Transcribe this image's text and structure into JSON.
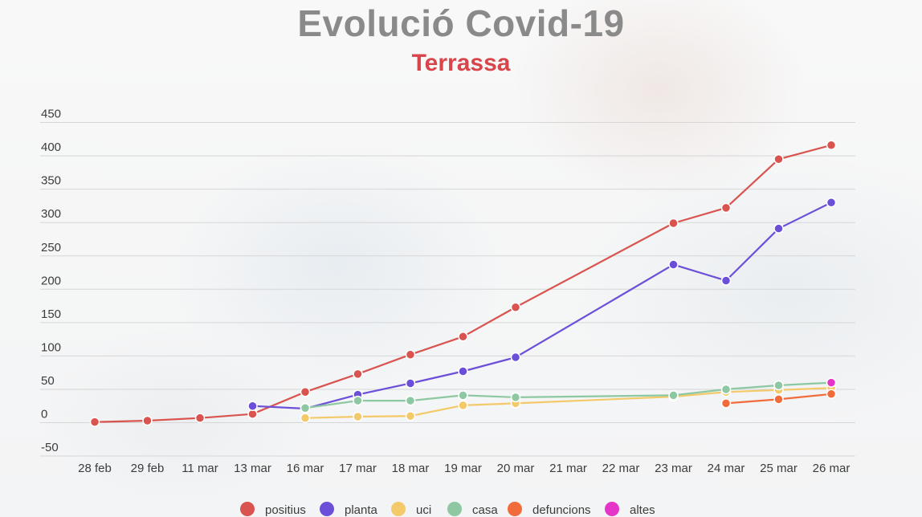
{
  "header": {
    "title": "Evolució Covid-19",
    "subtitle": "Terrassa"
  },
  "chart_data": {
    "type": "line",
    "title": "Evolució Covid-19",
    "subtitle": "Terrassa",
    "xlabel": "",
    "ylabel": "",
    "categories": [
      "28 feb",
      "29 feb",
      "11 mar",
      "13 mar",
      "16 mar",
      "17 mar",
      "18 mar",
      "19 mar",
      "20 mar",
      "21 mar",
      "22 mar",
      "23 mar",
      "24 mar",
      "25 mar",
      "26 mar"
    ],
    "y_ticks": [
      -50,
      0,
      50,
      100,
      150,
      200,
      250,
      300,
      350,
      400,
      450
    ],
    "ylim": [
      -60,
      460
    ],
    "grid": true,
    "legend_position": "bottom",
    "series": [
      {
        "name": "positius",
        "color": "#d9534f",
        "values": [
          1,
          3,
          7,
          13,
          46,
          73,
          102,
          129,
          173,
          null,
          null,
          299,
          322,
          395,
          416
        ]
      },
      {
        "name": "planta",
        "color": "#6c4fd9",
        "values": [
          null,
          null,
          null,
          25,
          21,
          42,
          59,
          77,
          98,
          null,
          null,
          237,
          213,
          291,
          330
        ]
      },
      {
        "name": "uci",
        "color": "#f4c96a",
        "values": [
          null,
          null,
          null,
          null,
          7,
          9,
          10,
          26,
          29,
          null,
          null,
          39,
          46,
          49,
          52
        ]
      },
      {
        "name": "casa",
        "color": "#8dc8a2",
        "values": [
          null,
          null,
          null,
          null,
          22,
          33,
          33,
          41,
          38,
          null,
          null,
          41,
          50,
          56,
          60
        ]
      },
      {
        "name": "defuncions",
        "color": "#f26b3a",
        "values": [
          null,
          null,
          null,
          null,
          null,
          null,
          null,
          null,
          null,
          null,
          null,
          null,
          29,
          35,
          43
        ]
      },
      {
        "name": "altes",
        "color": "#e535c9",
        "values": [
          null,
          null,
          null,
          null,
          null,
          null,
          null,
          null,
          null,
          null,
          null,
          null,
          null,
          null,
          60
        ]
      }
    ]
  }
}
